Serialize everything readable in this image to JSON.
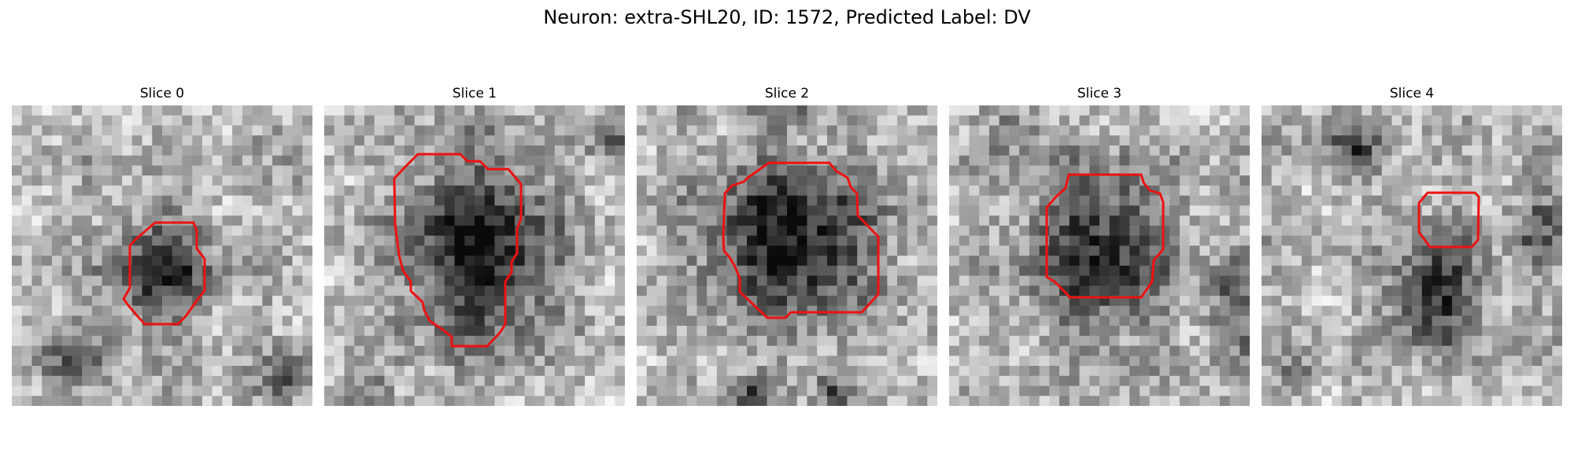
{
  "figure": {
    "title": "Neuron: extra-SHL20, ID: 1572, Predicted Label: DV"
  },
  "contour_color": "#ee1111",
  "panels": [
    {
      "title": "Slice 0"
    },
    {
      "title": "Slice 1"
    },
    {
      "title": "Slice 2"
    },
    {
      "title": "Slice 3"
    },
    {
      "title": "Slice 4"
    }
  ]
}
